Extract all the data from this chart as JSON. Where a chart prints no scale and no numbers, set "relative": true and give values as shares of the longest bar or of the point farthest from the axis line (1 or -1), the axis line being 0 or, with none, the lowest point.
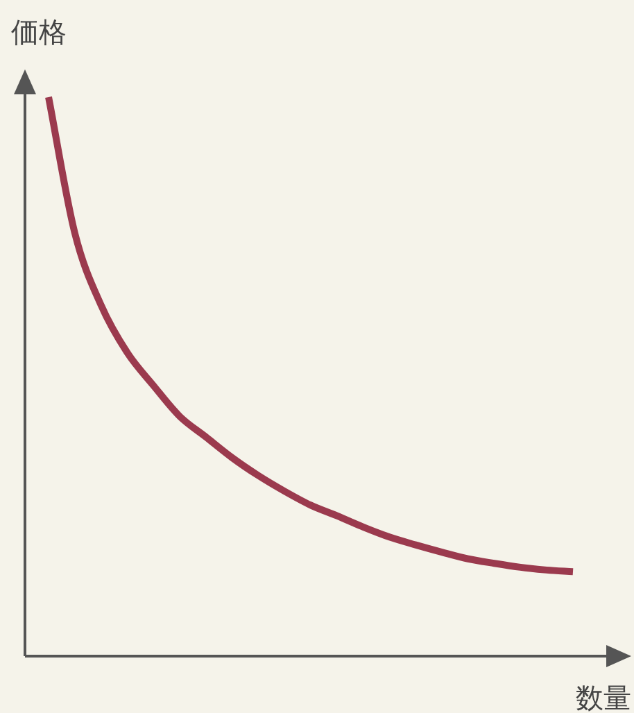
{
  "chart_data": {
    "type": "line",
    "relative": true,
    "xlabel": "数量",
    "ylabel": "価格",
    "marker": "none",
    "line_style": "solid",
    "categories": [
      null,
      null,
      null,
      null,
      null,
      null,
      null,
      null,
      null,
      null,
      null,
      null,
      null,
      null,
      null,
      null,
      null,
      null,
      null,
      null,
      null
    ],
    "series": [
      {
        "color": "#9b3a4e",
        "values": [
          1.0,
          0.757,
          0.628,
          0.543,
          0.484,
          0.429,
          0.392,
          0.355,
          0.323,
          0.295,
          0.27,
          0.251,
          0.231,
          0.213,
          0.199,
          0.186,
          0.174,
          0.166,
          0.159,
          0.154,
          0.151
        ]
      }
    ]
  }
}
